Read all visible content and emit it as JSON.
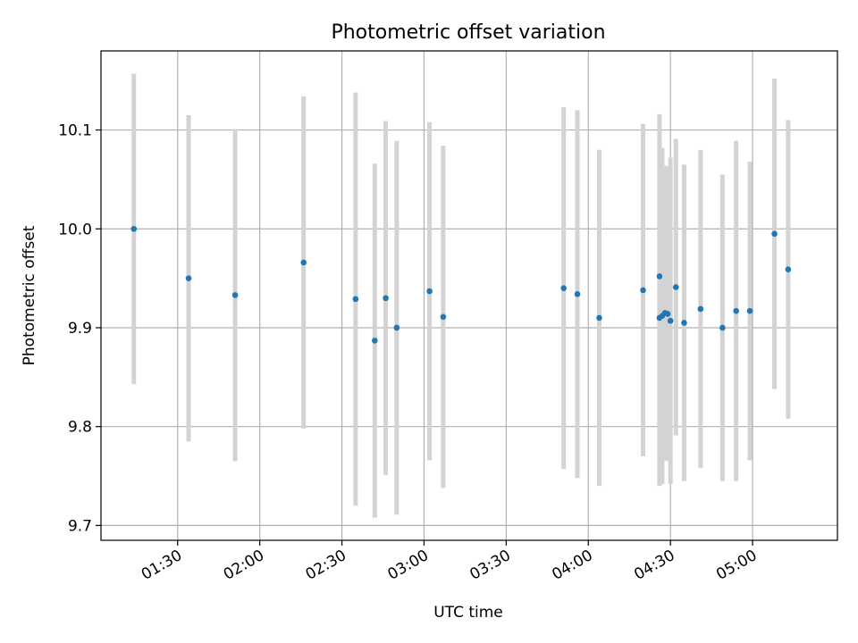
{
  "chart_data": {
    "type": "scatter",
    "title": "Photometric offset variation",
    "xlabel": "UTC time",
    "ylabel": "Photometric offset",
    "grid": true,
    "xlim": [
      "01:02",
      "05:31"
    ],
    "ylim": [
      9.685,
      10.18
    ],
    "xticks": [
      "01:30",
      "02:00",
      "02:30",
      "03:00",
      "03:30",
      "04:00",
      "04:30",
      "05:00"
    ],
    "yticks": [
      9.7,
      9.8,
      9.9,
      10.0,
      10.1
    ],
    "yticklabels": [
      "9.7",
      "9.8",
      "9.9",
      "10.0",
      "10.1"
    ],
    "point_color": "#1f77b4",
    "errorbar_color": "#d3d3d3",
    "series": [
      {
        "x": [
          "01:14",
          "01:34",
          "01:51",
          "02:16",
          "02:35",
          "02:42",
          "02:46",
          "02:50",
          "03:02",
          "03:07",
          "03:51",
          "03:56",
          "04:04",
          "04:20",
          "04:26",
          "04:26",
          "04:27",
          "04:28",
          "04:29",
          "04:30",
          "04:32",
          "04:35",
          "04:41",
          "04:49",
          "04:54",
          "04:59",
          "05:08",
          "05:13"
        ],
        "y": [
          10.0,
          9.95,
          9.933,
          9.966,
          9.929,
          9.887,
          9.93,
          9.9,
          9.937,
          9.911,
          9.94,
          9.934,
          9.91,
          9.938,
          9.952,
          9.91,
          9.912,
          9.915,
          9.914,
          9.907,
          9.941,
          9.905,
          9.919,
          9.9,
          9.917,
          9.917,
          9.995,
          9.959
        ],
        "yerr": [
          0.157,
          0.165,
          0.168,
          0.168,
          0.209,
          0.179,
          0.179,
          0.189,
          0.171,
          0.173,
          0.183,
          0.186,
          0.17,
          0.168,
          0.164,
          0.17,
          0.17,
          0.149,
          0.149,
          0.165,
          0.15,
          0.16,
          0.161,
          0.155,
          0.172,
          0.151,
          0.157,
          0.151
        ]
      }
    ]
  }
}
